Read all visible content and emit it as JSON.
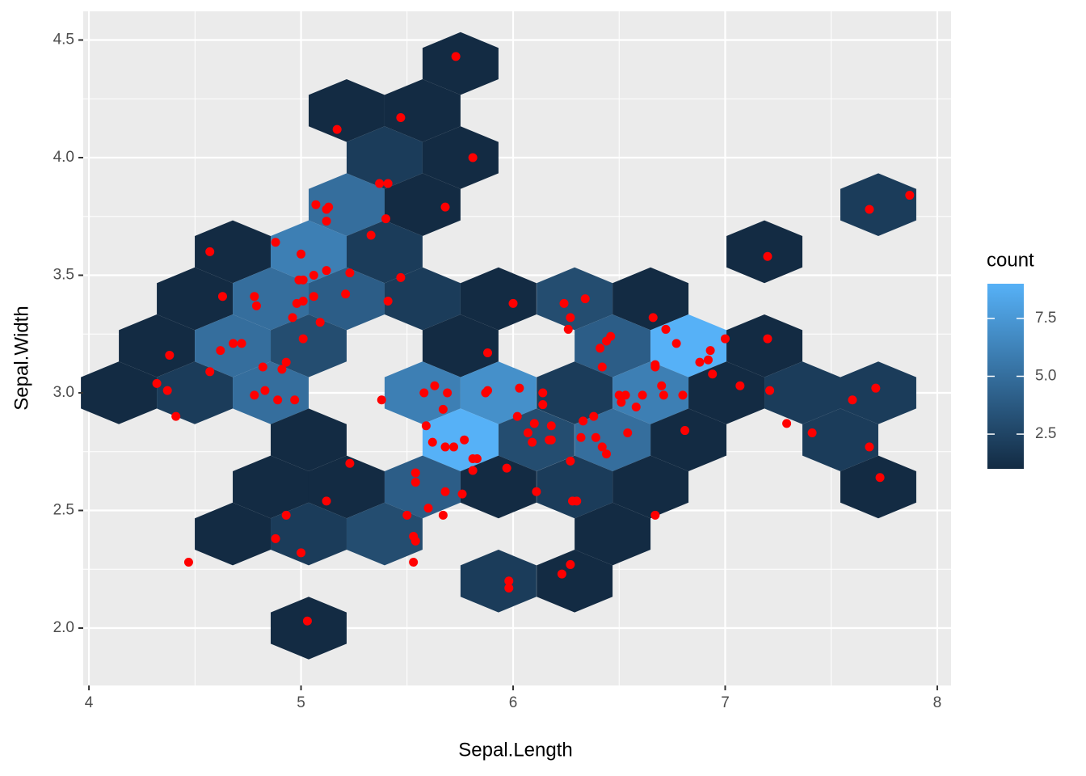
{
  "chart_data": {
    "type": "hexbin",
    "x_label": "Sepal.Length",
    "y_label": "Sepal.Width",
    "xlim": [
      3.973,
      8.065
    ],
    "ylim": [
      1.756,
      4.622
    ],
    "xticks": [
      4,
      5,
      6,
      7,
      8
    ],
    "yticks": [
      {
        "value": 2,
        "label": "2.0"
      },
      2.5,
      {
        "value": 3,
        "label": "3.0"
      },
      3.5,
      {
        "value": 4,
        "label": "4.0"
      },
      4.5
    ],
    "x_minor_grid": [
      4.5,
      5.5,
      6.5,
      7.5
    ],
    "y_minor_grid": [
      2.25,
      2.75,
      3.25,
      3.75,
      4.25
    ],
    "grid": true,
    "binwidth": [
      0.358,
      0.4
    ],
    "hexbins": {
      "x": [
        5.752,
        5.215,
        5.573,
        5.394,
        5.752,
        5.215,
        5.573,
        7.722,
        4.678,
        5.036,
        5.394,
        7.185,
        4.499,
        4.857,
        5.215,
        5.573,
        5.931,
        6.29,
        6.648,
        4.32,
        4.678,
        5.036,
        5.752,
        6.469,
        6.827,
        7.185,
        4.141,
        4.499,
        4.857,
        5.573,
        5.931,
        6.29,
        6.648,
        7.006,
        7.364,
        7.722,
        5.036,
        5.752,
        6.11,
        6.469,
        6.827,
        7.543,
        4.857,
        5.215,
        5.573,
        5.931,
        6.29,
        6.648,
        7.722,
        4.678,
        5.036,
        5.394,
        6.469,
        5.931,
        6.29,
        5.036
      ],
      "y": [
        4.4,
        4.2,
        4.2,
        4.0,
        4.0,
        3.8,
        3.8,
        3.8,
        3.6,
        3.6,
        3.6,
        3.6,
        3.4,
        3.4,
        3.4,
        3.4,
        3.4,
        3.4,
        3.4,
        3.2,
        3.2,
        3.2,
        3.2,
        3.2,
        3.2,
        3.2,
        3.0,
        3.0,
        3.0,
        3.0,
        3.0,
        3.0,
        3.0,
        3.0,
        3.0,
        3.0,
        2.8,
        2.8,
        2.8,
        2.8,
        2.8,
        2.8,
        2.6,
        2.6,
        2.6,
        2.6,
        2.6,
        2.6,
        2.6,
        2.4,
        2.4,
        2.4,
        2.4,
        2.2,
        2.2,
        2.0
      ],
      "count": [
        1,
        1,
        1,
        2,
        1,
        5,
        1,
        2,
        1,
        6,
        2,
        1,
        1,
        5,
        4,
        2,
        1,
        3,
        1,
        1,
        5,
        3,
        1,
        4,
        9,
        1,
        1,
        2,
        5,
        6,
        7,
        2,
        6,
        1,
        2,
        2,
        1,
        9,
        3,
        5,
        1,
        2,
        1,
        1,
        4,
        1,
        2,
        1,
        1,
        1,
        2,
        3,
        1,
        2,
        1,
        1
      ]
    },
    "points": {
      "color": "#ff0000",
      "x": [
        5.73,
        5.47,
        5.17,
        5.81,
        5.37,
        5.41,
        5.68,
        5.07,
        5.12,
        5.13,
        5.12,
        5.4,
        5.33,
        4.88,
        5.0,
        4.57,
        5.12,
        5.06,
        5.01,
        4.99,
        5.23,
        5.47,
        4.63,
        4.78,
        4.79,
        4.98,
        5.01,
        4.96,
        5.06,
        5.21,
        5.41,
        5.09,
        4.38,
        4.62,
        4.68,
        4.72,
        5.01,
        4.57,
        4.82,
        4.91,
        4.93,
        4.32,
        4.37,
        4.78,
        4.83,
        4.89,
        4.97,
        4.41,
        5.38,
        5.58,
        5.63,
        5.69,
        5.67,
        5.59,
        5.62,
        5.68,
        5.72,
        5.77,
        5.81,
        5.83,
        5.81,
        5.88,
        5.87,
        5.88,
        6.03,
        6.02,
        6.14,
        6.14,
        6.07,
        6.1,
        6.18,
        6.18,
        6.09,
        6.17,
        5.97,
        6.11,
        5.23,
        5.12,
        4.93,
        4.88,
        5.0,
        4.47,
        5.03,
        5.54,
        5.54,
        5.5,
        5.6,
        5.68,
        5.67,
        5.76,
        5.53,
        5.54,
        5.53,
        5.98,
        5.98,
        6.23,
        6.27,
        6.28,
        6.3,
        6.27,
        6.33,
        6.38,
        6.32,
        6.39,
        6.42,
        6.44,
        6.0,
        6.24,
        6.34,
        6.27,
        6.26,
        6.41,
        6.42,
        6.44,
        6.46,
        6.66,
        6.72,
        6.77,
        6.67,
        6.67,
        6.7,
        6.71,
        6.5,
        6.53,
        6.51,
        6.58,
        6.61,
        6.54,
        6.8,
        6.81,
        6.88,
        6.92,
        6.93,
        6.94,
        7.0,
        7.07,
        7.2,
        7.2,
        7.21,
        7.29,
        7.41,
        7.6,
        7.71,
        7.68,
        7.73,
        7.68,
        7.87,
        6.67
      ],
      "y": [
        4.43,
        4.17,
        4.12,
        4.0,
        3.89,
        3.89,
        3.79,
        3.8,
        3.78,
        3.79,
        3.73,
        3.74,
        3.67,
        3.64,
        3.59,
        3.6,
        3.52,
        3.5,
        3.48,
        3.48,
        3.51,
        3.49,
        3.41,
        3.41,
        3.37,
        3.38,
        3.39,
        3.32,
        3.41,
        3.42,
        3.39,
        3.3,
        3.16,
        3.18,
        3.21,
        3.21,
        3.23,
        3.09,
        3.11,
        3.1,
        3.13,
        3.04,
        3.01,
        2.99,
        3.01,
        2.97,
        2.97,
        2.9,
        2.97,
        3.0,
        3.03,
        3.0,
        2.93,
        2.86,
        2.79,
        2.77,
        2.77,
        2.8,
        2.72,
        2.72,
        2.67,
        3.17,
        3.0,
        3.01,
        3.02,
        2.9,
        3.0,
        2.95,
        2.83,
        2.87,
        2.86,
        2.8,
        2.79,
        2.8,
        2.68,
        2.58,
        2.7,
        2.54,
        2.48,
        2.38,
        2.32,
        2.28,
        2.03,
        2.66,
        2.62,
        2.48,
        2.51,
        2.58,
        2.48,
        2.57,
        2.39,
        2.37,
        2.28,
        2.2,
        2.17,
        2.23,
        2.27,
        2.54,
        2.54,
        2.71,
        2.88,
        2.9,
        2.81,
        2.81,
        2.77,
        2.74,
        3.38,
        3.38,
        3.4,
        3.32,
        3.27,
        3.19,
        3.11,
        3.22,
        3.24,
        3.32,
        3.27,
        3.21,
        3.12,
        3.11,
        3.03,
        2.99,
        2.99,
        2.99,
        2.96,
        2.94,
        2.99,
        2.83,
        2.99,
        2.84,
        3.13,
        3.14,
        3.18,
        3.08,
        3.23,
        3.03,
        3.58,
        3.23,
        3.01,
        2.87,
        2.83,
        2.97,
        3.02,
        2.77,
        2.64,
        3.78,
        3.84,
        2.48
      ]
    },
    "legend": {
      "title": "count",
      "low_color": "#132B43",
      "high_color": "#56B1F7",
      "ticks": [
        2.5,
        {
          "value": 5,
          "label": "5.0"
        },
        7.5
      ]
    }
  }
}
